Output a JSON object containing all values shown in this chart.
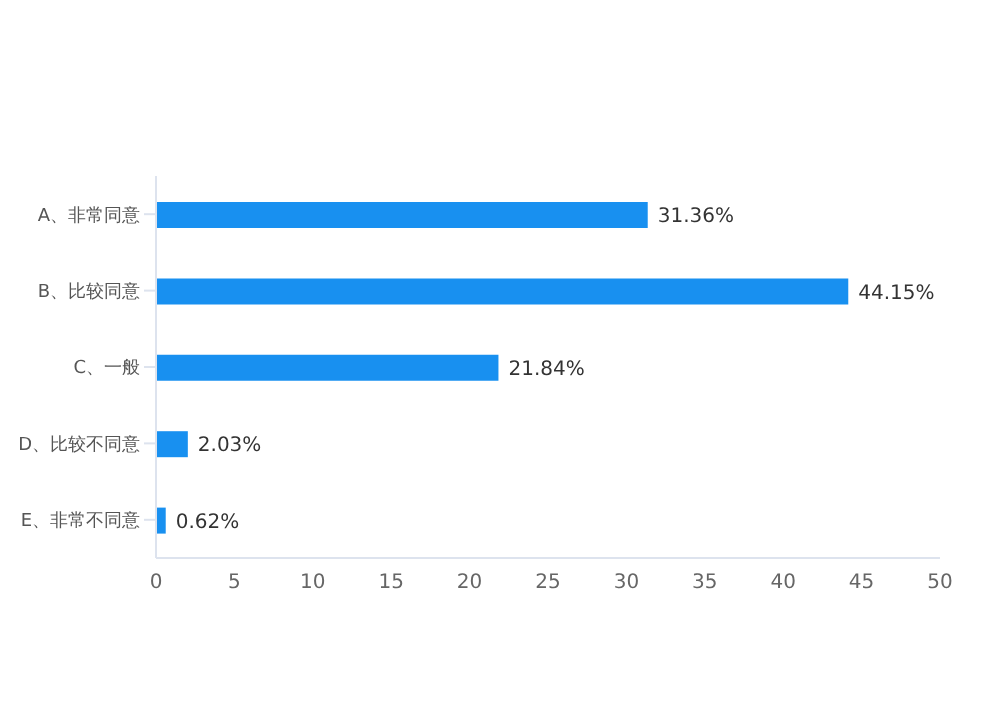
{
  "chart_data": {
    "type": "bar",
    "orientation": "horizontal",
    "categories": [
      "A、非常同意",
      "B、比较同意",
      "C、一般",
      "D、比较不同意",
      "E、非常不同意"
    ],
    "values": [
      31.36,
      44.15,
      21.84,
      2.03,
      0.62
    ],
    "value_labels": [
      "31.36%",
      "44.15%",
      "21.84%",
      "2.03%",
      "0.62%"
    ],
    "color": "#1890f0",
    "xlim": [
      0,
      50
    ],
    "xticks": [
      0,
      5,
      10,
      15,
      20,
      25,
      30,
      35,
      40,
      45,
      50
    ],
    "grid": false,
    "legend": false
  }
}
